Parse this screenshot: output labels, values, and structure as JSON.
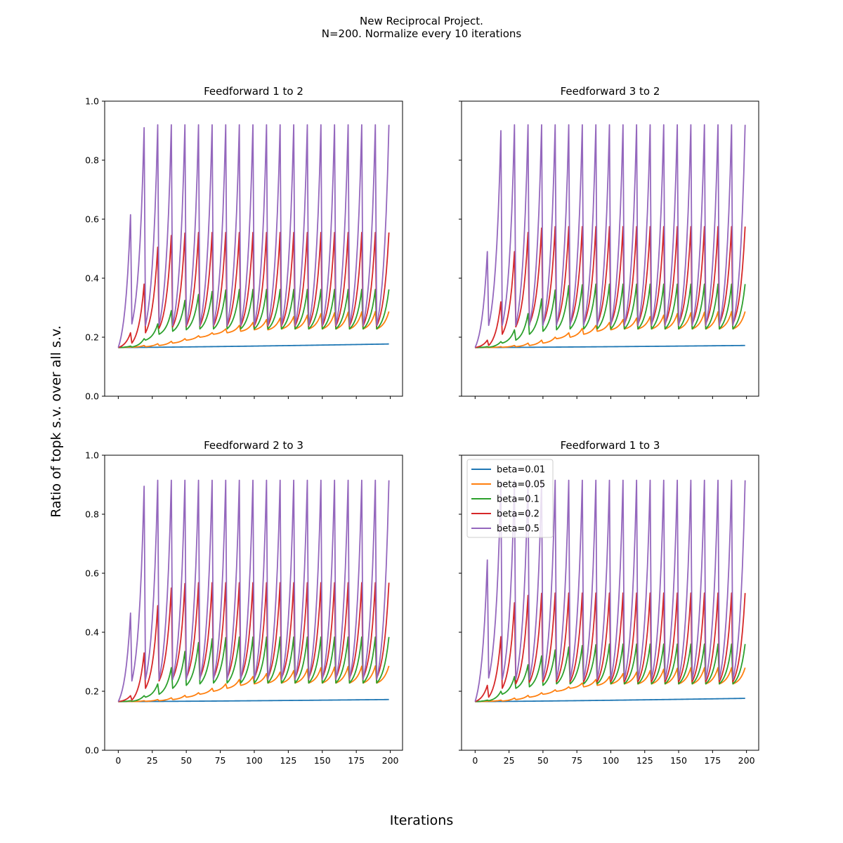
{
  "figure": {
    "title_line1": "New Reciprocal Project.",
    "title_line2": "N=200. Normalize every 10 iterations",
    "xlabel": "Iterations",
    "ylabel": "Ratio of topk s.v. over all s.v."
  },
  "chart_data": {
    "type": "line",
    "shared_x_axis": true,
    "shared_y_axis": true,
    "xlim": [
      -10,
      209
    ],
    "ylim": [
      0,
      1.0
    ],
    "xticks": [
      "0",
      "25",
      "50",
      "75",
      "100",
      "125",
      "150",
      "175",
      "200"
    ],
    "yticks": [
      "0.0",
      "0.2",
      "0.4",
      "0.6",
      "0.8",
      "1.0"
    ],
    "grid": false,
    "legend": {
      "placement": "upper left",
      "panel": "Feedforward 1 to 3"
    },
    "series_meta": [
      {
        "name": "beta=0.01",
        "color": "#1f77b4"
      },
      {
        "name": "beta=0.05",
        "color": "#ff7f0e"
      },
      {
        "name": "beta=0.1",
        "color": "#2ca02c"
      },
      {
        "name": "beta=0.2",
        "color": "#d62728"
      },
      {
        "name": "beta=0.5",
        "color": "#9467bd"
      }
    ],
    "x_range": [
      0,
      199
    ],
    "normalize_every": 10,
    "panels": [
      {
        "title": "Feedforward 1 to 2",
        "series": [
          {
            "name": "beta=0.01",
            "start": 0.165,
            "end": 0.177
          },
          {
            "name": "beta=0.05",
            "start": 0.165,
            "cycle_peaks": [
              0.167,
              0.172,
              0.178,
              0.186,
              0.195,
              0.205,
              0.215,
              0.228,
              0.24,
              0.25,
              0.26,
              0.265,
              0.27,
              0.275,
              0.28,
              0.283,
              0.285,
              0.286,
              0.287,
              0.287
            ],
            "cycle_lows": [
              0.165,
              0.166,
              0.168,
              0.172,
              0.18,
              0.19,
              0.2,
              0.21,
              0.215,
              0.22,
              0.225,
              0.225,
              0.228,
              0.228,
              0.228,
              0.228,
              0.228,
              0.228,
              0.228,
              0.228
            ]
          },
          {
            "name": "beta=0.1",
            "start": 0.165,
            "cycle_peaks": [
              0.17,
              0.195,
              0.245,
              0.29,
              0.325,
              0.345,
              0.355,
              0.36,
              0.362,
              0.362,
              0.362,
              0.362,
              0.362,
              0.362,
              0.362,
              0.362,
              0.362,
              0.362,
              0.362,
              0.362
            ],
            "cycle_lows": [
              0.165,
              0.167,
              0.19,
              0.21,
              0.22,
              0.225,
              0.228,
              0.228,
              0.228,
              0.228,
              0.228,
              0.228,
              0.228,
              0.228,
              0.228,
              0.228,
              0.228,
              0.228,
              0.228,
              0.228
            ]
          },
          {
            "name": "beta=0.2",
            "start": 0.165,
            "cycle_peaks": [
              0.215,
              0.38,
              0.505,
              0.545,
              0.553,
              0.555,
              0.555,
              0.555,
              0.555,
              0.555,
              0.555,
              0.555,
              0.555,
              0.555,
              0.555,
              0.555,
              0.555,
              0.555,
              0.555,
              0.555
            ],
            "cycle_lows": [
              0.165,
              0.18,
              0.215,
              0.23,
              0.235,
              0.237,
              0.238,
              0.238,
              0.238,
              0.238,
              0.238,
              0.238,
              0.238,
              0.238,
              0.238,
              0.238,
              0.238,
              0.238,
              0.238,
              0.238
            ]
          },
          {
            "name": "beta=0.5",
            "start": 0.165,
            "cycle_peaks": [
              0.615,
              0.91,
              0.92,
              0.92,
              0.92,
              0.92,
              0.92,
              0.92,
              0.92,
              0.92,
              0.92,
              0.92,
              0.92,
              0.92,
              0.92,
              0.92,
              0.92,
              0.92,
              0.92,
              0.92
            ],
            "cycle_lows": [
              0.165,
              0.245,
              0.24,
              0.24,
              0.24,
              0.24,
              0.24,
              0.24,
              0.24,
              0.24,
              0.24,
              0.24,
              0.24,
              0.24,
              0.24,
              0.24,
              0.24,
              0.24,
              0.24,
              0.24
            ]
          }
        ]
      },
      {
        "title": "Feedforward 3 to 2",
        "series": [
          {
            "name": "beta=0.01",
            "start": 0.165,
            "end": 0.172
          },
          {
            "name": "beta=0.05",
            "start": 0.165,
            "cycle_peaks": [
              0.166,
              0.168,
              0.172,
              0.18,
              0.19,
              0.2,
              0.215,
              0.23,
              0.24,
              0.25,
              0.26,
              0.265,
              0.27,
              0.275,
              0.28,
              0.283,
              0.285,
              0.286,
              0.287,
              0.287
            ],
            "cycle_lows": [
              0.165,
              0.165,
              0.166,
              0.168,
              0.172,
              0.18,
              0.195,
              0.2,
              0.21,
              0.22,
              0.225,
              0.228,
              0.228,
              0.228,
              0.228,
              0.228,
              0.228,
              0.228,
              0.228,
              0.228
            ]
          },
          {
            "name": "beta=0.1",
            "start": 0.165,
            "cycle_peaks": [
              0.168,
              0.185,
              0.225,
              0.28,
              0.33,
              0.36,
              0.375,
              0.378,
              0.38,
              0.38,
              0.38,
              0.38,
              0.38,
              0.38,
              0.38,
              0.38,
              0.38,
              0.38,
              0.38,
              0.38
            ],
            "cycle_lows": [
              0.165,
              0.166,
              0.18,
              0.19,
              0.21,
              0.22,
              0.225,
              0.228,
              0.228,
              0.228,
              0.228,
              0.228,
              0.228,
              0.228,
              0.228,
              0.228,
              0.228,
              0.228,
              0.228,
              0.228
            ]
          },
          {
            "name": "beta=0.2",
            "start": 0.165,
            "cycle_peaks": [
              0.19,
              0.32,
              0.49,
              0.555,
              0.57,
              0.575,
              0.575,
              0.575,
              0.575,
              0.575,
              0.575,
              0.575,
              0.575,
              0.575,
              0.575,
              0.575,
              0.575,
              0.575,
              0.575,
              0.575
            ],
            "cycle_lows": [
              0.165,
              0.172,
              0.21,
              0.235,
              0.245,
              0.245,
              0.245,
              0.245,
              0.245,
              0.245,
              0.245,
              0.245,
              0.245,
              0.245,
              0.245,
              0.245,
              0.245,
              0.245,
              0.245,
              0.245
            ]
          },
          {
            "name": "beta=0.5",
            "start": 0.165,
            "cycle_peaks": [
              0.49,
              0.9,
              0.92,
              0.92,
              0.92,
              0.92,
              0.92,
              0.92,
              0.92,
              0.92,
              0.92,
              0.92,
              0.92,
              0.92,
              0.92,
              0.92,
              0.92,
              0.92,
              0.92,
              0.92
            ],
            "cycle_lows": [
              0.165,
              0.24,
              0.24,
              0.24,
              0.24,
              0.24,
              0.24,
              0.24,
              0.24,
              0.24,
              0.24,
              0.24,
              0.24,
              0.24,
              0.24,
              0.24,
              0.24,
              0.24,
              0.24,
              0.24
            ]
          }
        ]
      },
      {
        "title": "Feedforward 2 to 3",
        "series": [
          {
            "name": "beta=0.01",
            "start": 0.165,
            "end": 0.172
          },
          {
            "name": "beta=0.05",
            "start": 0.165,
            "cycle_peaks": [
              0.166,
              0.168,
              0.172,
              0.178,
              0.186,
              0.195,
              0.21,
              0.225,
              0.24,
              0.25,
              0.26,
              0.265,
              0.27,
              0.275,
              0.28,
              0.282,
              0.284,
              0.285,
              0.286,
              0.286
            ],
            "cycle_lows": [
              0.165,
              0.165,
              0.166,
              0.168,
              0.172,
              0.18,
              0.19,
              0.2,
              0.21,
              0.22,
              0.225,
              0.228,
              0.228,
              0.228,
              0.228,
              0.228,
              0.228,
              0.228,
              0.228,
              0.228
            ]
          },
          {
            "name": "beta=0.1",
            "start": 0.165,
            "cycle_peaks": [
              0.168,
              0.185,
              0.225,
              0.28,
              0.335,
              0.365,
              0.378,
              0.382,
              0.384,
              0.384,
              0.384,
              0.384,
              0.384,
              0.384,
              0.384,
              0.384,
              0.384,
              0.384,
              0.384,
              0.384
            ],
            "cycle_lows": [
              0.165,
              0.166,
              0.18,
              0.19,
              0.21,
              0.22,
              0.225,
              0.228,
              0.228,
              0.228,
              0.228,
              0.228,
              0.228,
              0.228,
              0.228,
              0.228,
              0.228,
              0.228,
              0.228,
              0.228
            ]
          },
          {
            "name": "beta=0.2",
            "start": 0.165,
            "cycle_peaks": [
              0.185,
              0.33,
              0.49,
              0.55,
              0.565,
              0.568,
              0.568,
              0.568,
              0.568,
              0.568,
              0.568,
              0.568,
              0.568,
              0.568,
              0.568,
              0.568,
              0.568,
              0.568,
              0.568,
              0.568
            ],
            "cycle_lows": [
              0.165,
              0.17,
              0.21,
              0.235,
              0.243,
              0.245,
              0.245,
              0.245,
              0.245,
              0.245,
              0.245,
              0.245,
              0.245,
              0.245,
              0.245,
              0.245,
              0.245,
              0.245,
              0.245,
              0.245
            ]
          },
          {
            "name": "beta=0.5",
            "start": 0.165,
            "cycle_peaks": [
              0.465,
              0.895,
              0.915,
              0.915,
              0.915,
              0.915,
              0.915,
              0.915,
              0.915,
              0.915,
              0.915,
              0.915,
              0.915,
              0.915,
              0.915,
              0.915,
              0.915,
              0.915,
              0.915,
              0.915
            ],
            "cycle_lows": [
              0.165,
              0.235,
              0.24,
              0.24,
              0.24,
              0.24,
              0.24,
              0.24,
              0.24,
              0.24,
              0.24,
              0.24,
              0.24,
              0.24,
              0.24,
              0.24,
              0.24,
              0.24,
              0.24,
              0.24
            ]
          }
        ]
      },
      {
        "title": "Feedforward 1 to 3",
        "series": [
          {
            "name": "beta=0.01",
            "start": 0.165,
            "end": 0.176
          },
          {
            "name": "beta=0.05",
            "start": 0.165,
            "cycle_peaks": [
              0.166,
              0.17,
              0.177,
              0.186,
              0.195,
              0.205,
              0.215,
              0.228,
              0.24,
              0.25,
              0.26,
              0.265,
              0.27,
              0.275,
              0.278,
              0.28,
              0.28,
              0.28,
              0.28,
              0.28
            ],
            "cycle_lows": [
              0.165,
              0.166,
              0.167,
              0.172,
              0.18,
              0.19,
              0.2,
              0.21,
              0.215,
              0.22,
              0.225,
              0.225,
              0.225,
              0.225,
              0.225,
              0.225,
              0.225,
              0.225,
              0.225,
              0.225
            ]
          },
          {
            "name": "beta=0.1",
            "start": 0.165,
            "cycle_peaks": [
              0.17,
              0.2,
              0.25,
              0.29,
              0.32,
              0.34,
              0.35,
              0.355,
              0.358,
              0.36,
              0.36,
              0.36,
              0.36,
              0.36,
              0.36,
              0.36,
              0.36,
              0.36,
              0.36,
              0.36
            ],
            "cycle_lows": [
              0.165,
              0.168,
              0.19,
              0.21,
              0.215,
              0.22,
              0.225,
              0.225,
              0.225,
              0.225,
              0.225,
              0.225,
              0.225,
              0.225,
              0.225,
              0.225,
              0.225,
              0.225,
              0.225,
              0.225
            ]
          },
          {
            "name": "beta=0.2",
            "start": 0.165,
            "cycle_peaks": [
              0.22,
              0.385,
              0.5,
              0.525,
              0.532,
              0.533,
              0.533,
              0.533,
              0.533,
              0.533,
              0.533,
              0.533,
              0.533,
              0.533,
              0.533,
              0.533,
              0.533,
              0.533,
              0.533,
              0.533
            ],
            "cycle_lows": [
              0.165,
              0.18,
              0.21,
              0.225,
              0.23,
              0.232,
              0.232,
              0.232,
              0.232,
              0.232,
              0.232,
              0.232,
              0.232,
              0.232,
              0.232,
              0.232,
              0.232,
              0.232,
              0.232,
              0.232
            ]
          },
          {
            "name": "beta=0.5",
            "start": 0.165,
            "cycle_peaks": [
              0.645,
              0.91,
              0.915,
              0.915,
              0.915,
              0.915,
              0.915,
              0.915,
              0.915,
              0.915,
              0.915,
              0.915,
              0.915,
              0.915,
              0.915,
              0.915,
              0.915,
              0.915,
              0.915,
              0.915
            ],
            "cycle_lows": [
              0.165,
              0.245,
              0.24,
              0.24,
              0.24,
              0.24,
              0.24,
              0.24,
              0.24,
              0.24,
              0.24,
              0.24,
              0.24,
              0.24,
              0.24,
              0.24,
              0.24,
              0.24,
              0.24,
              0.24
            ]
          }
        ]
      }
    ]
  }
}
